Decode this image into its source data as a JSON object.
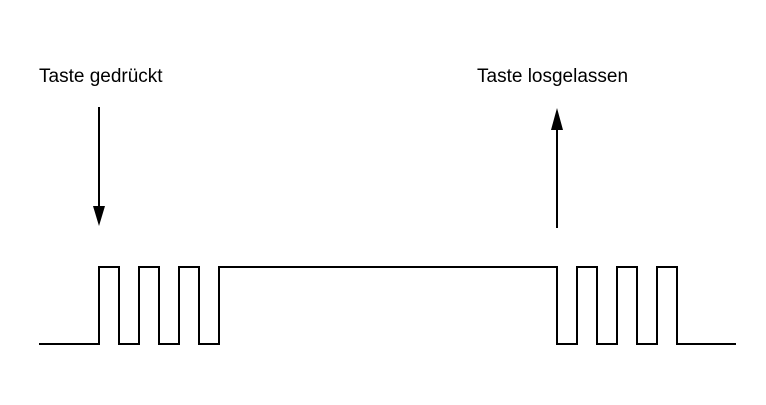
{
  "labels": {
    "key_pressed": "Taste gedrückt",
    "key_released": "Taste losgelassen"
  },
  "colors": {
    "line": "#000000",
    "background": "#ffffff"
  },
  "signal": {
    "initial_level": "low",
    "press_bounce_pulses": 4,
    "steady_level_after_press": "high",
    "release_bounce_pulses": 3,
    "final_level": "low"
  },
  "arrows": {
    "key_pressed": "down",
    "key_released": "up"
  }
}
